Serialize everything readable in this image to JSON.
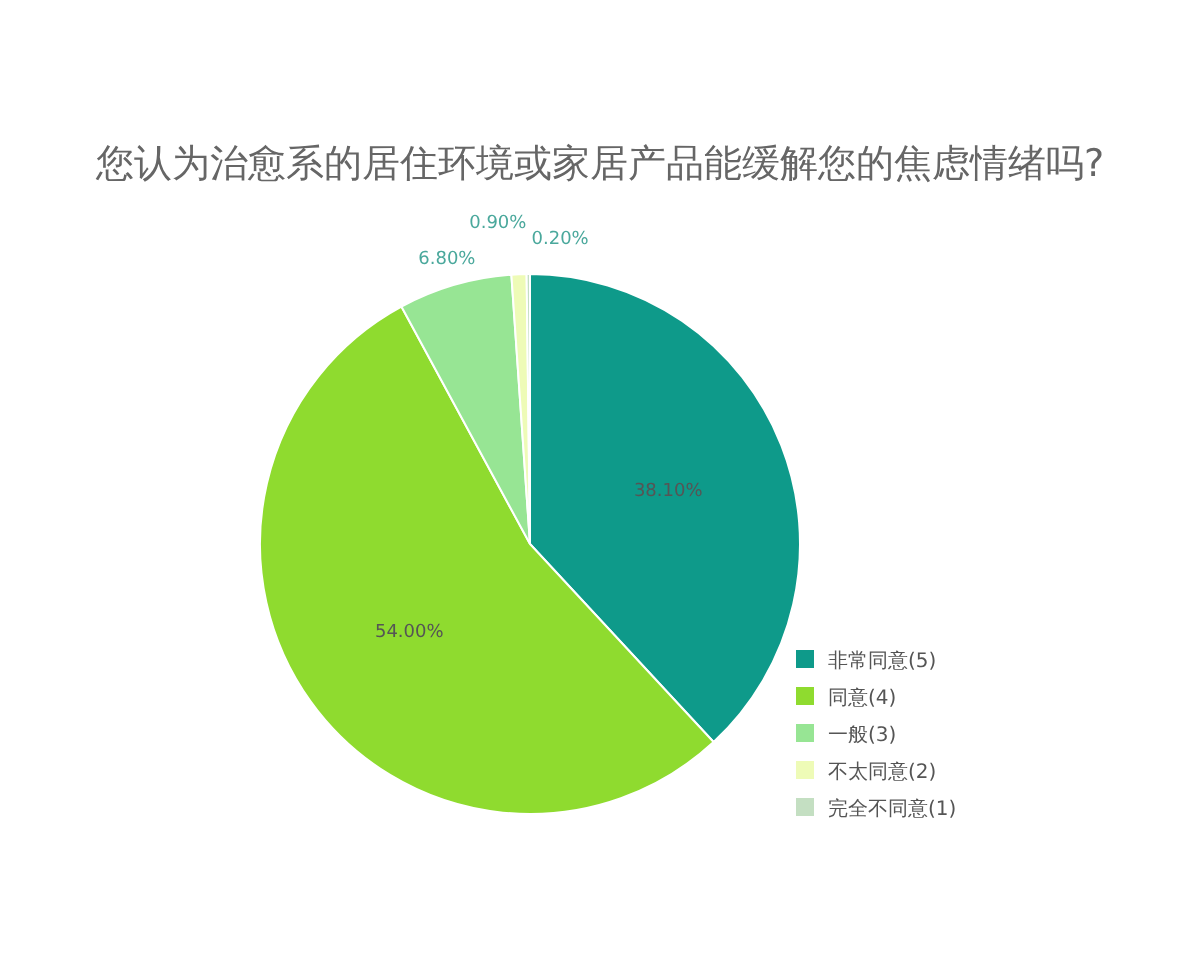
{
  "chart_data": {
    "type": "pie",
    "title": "您认为治愈系的居住环境或家居产品能缓解您的焦虑情绪吗?",
    "categories": [
      "非常同意(5)",
      "同意(4)",
      "一般(3)",
      "不太同意(2)",
      "完全不同意(1)"
    ],
    "values": [
      38.1,
      54.0,
      6.8,
      0.9,
      0.2
    ],
    "colors": [
      "#0e9a8a",
      "#8fdb2f",
      "#97e594",
      "#eefbb7",
      "#c4dfc2"
    ],
    "value_labels": [
      "38.10%",
      "54.00%",
      "6.80%",
      "0.90%",
      "0.20%"
    ],
    "legend": "bottom right"
  }
}
